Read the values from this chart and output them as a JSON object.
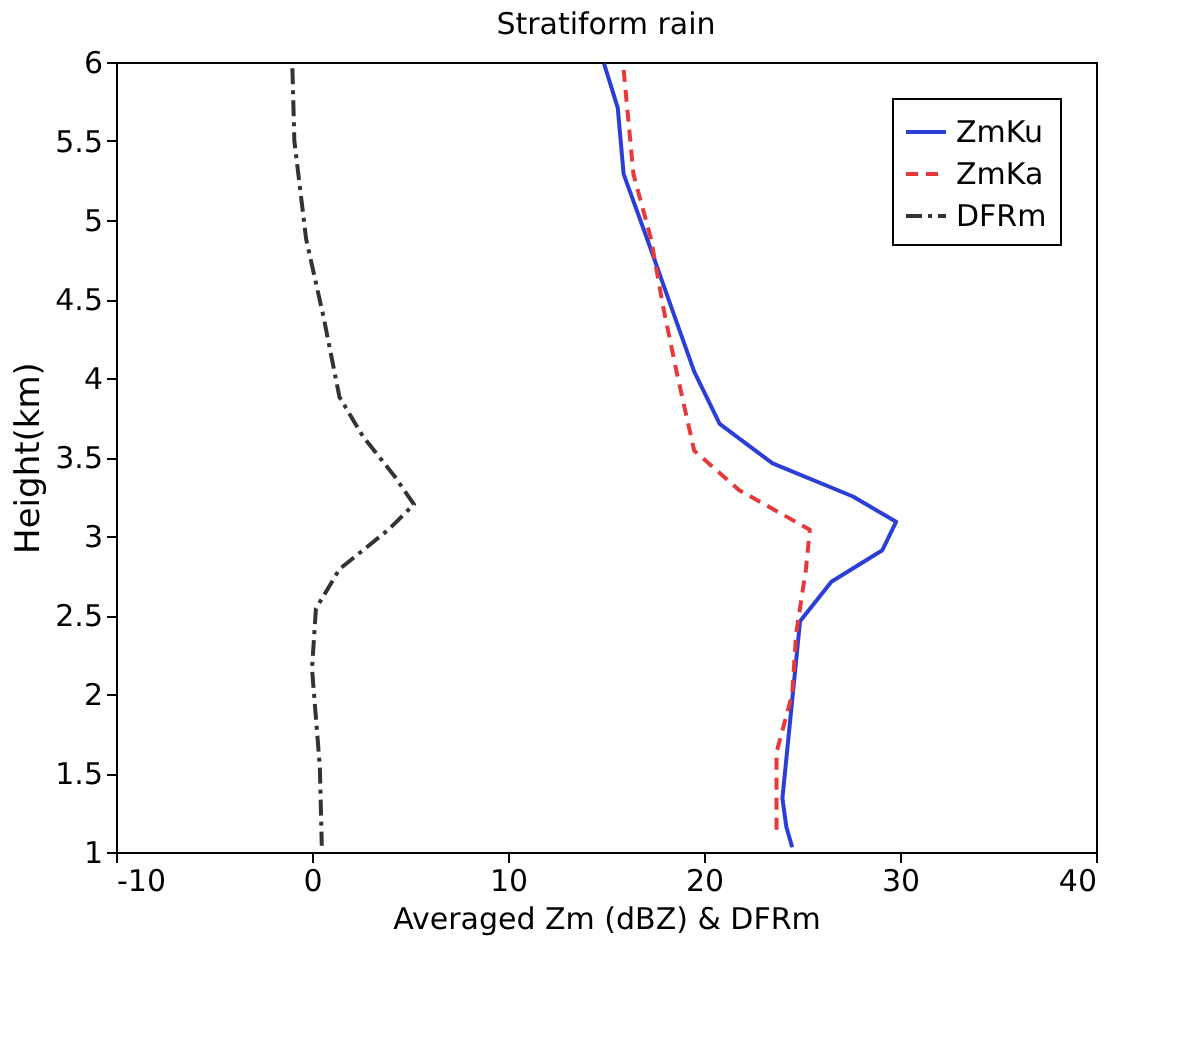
{
  "chart_data": {
    "type": "line",
    "title": "Stratiform rain",
    "xlabel": "Averaged Zm (dBZ) & DFRm",
    "ylabel": "Height(km)",
    "xlim": [
      -10,
      40
    ],
    "xticks": [
      -10,
      0,
      10,
      20,
      30,
      40
    ],
    "ylim": [
      1,
      6
    ],
    "yticks": [
      1,
      1.5,
      2,
      2.5,
      3,
      3.5,
      4,
      4.5,
      5,
      5.5,
      6
    ],
    "grid": false,
    "legend": "top right",
    "marker": "none",
    "series": [
      {
        "name": "ZmKu",
        "color": "#2b3fd8",
        "line_style": "solid",
        "x": [
          14.9,
          15.6,
          15.9,
          17.1,
          18.3,
          19.5,
          20.8,
          23.5,
          27.6,
          29.8,
          29.1,
          26.5,
          24.9,
          24.5,
          24.0,
          24.2,
          24.5
        ],
        "values": [
          5.99,
          5.71,
          5.29,
          4.88,
          4.46,
          4.04,
          3.71,
          3.46,
          3.25,
          3.09,
          2.91,
          2.71,
          2.46,
          1.96,
          1.34,
          1.16,
          1.03
        ]
      },
      {
        "name": "ZmKa",
        "color": "#e8393a",
        "line_style": "dashed",
        "x": [
          15.9,
          16.4,
          17.3,
          17.9,
          18.6,
          19.5,
          21.8,
          25.4,
          25.2,
          24.7,
          24.5,
          23.7,
          23.7
        ],
        "values": [
          5.95,
          5.29,
          4.88,
          4.46,
          4.04,
          3.54,
          3.29,
          3.04,
          2.79,
          2.38,
          2.0,
          1.63,
          1.13
        ]
      },
      {
        "name": "DFRm",
        "color": "#333333",
        "line_style": "dashdot",
        "x": [
          -1.0,
          -0.9,
          -0.3,
          0.6,
          1.4,
          2.6,
          4.2,
          5.2,
          3.9,
          1.4,
          0.2,
          0.0,
          0.4,
          0.5
        ],
        "values": [
          5.96,
          5.5,
          4.88,
          4.38,
          3.88,
          3.63,
          3.38,
          3.2,
          3.04,
          2.79,
          2.54,
          2.16,
          1.54,
          1.04
        ]
      }
    ]
  }
}
